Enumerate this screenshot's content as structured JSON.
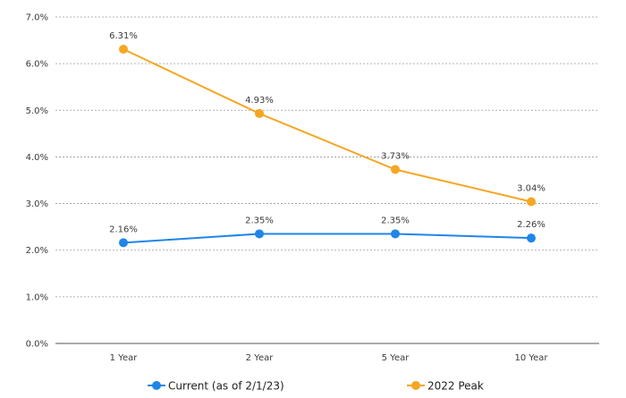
{
  "chart_data": {
    "type": "line",
    "categories": [
      "1 Year",
      "2 Year",
      "5 Year",
      "10 Year"
    ],
    "series": [
      {
        "name": "Current (as of 2/1/23)",
        "values": [
          2.16,
          2.35,
          2.35,
          2.26
        ],
        "labels": [
          "2.16%",
          "2.35%",
          "2.35%",
          "2.26%"
        ],
        "color": "#1f86e8"
      },
      {
        "name": "2022 Peak",
        "values": [
          6.31,
          4.93,
          3.73,
          3.04
        ],
        "labels": [
          "6.31%",
          "4.93%",
          "3.73%",
          "3.04%"
        ],
        "color": "#f5a623"
      }
    ],
    "y_ticks": [
      "0.0%",
      "1.0%",
      "2.0%",
      "3.0%",
      "4.0%",
      "5.0%",
      "6.0%",
      "7.0%"
    ],
    "ylim": [
      0,
      7
    ],
    "grid": true,
    "legend_position": "bottom"
  }
}
